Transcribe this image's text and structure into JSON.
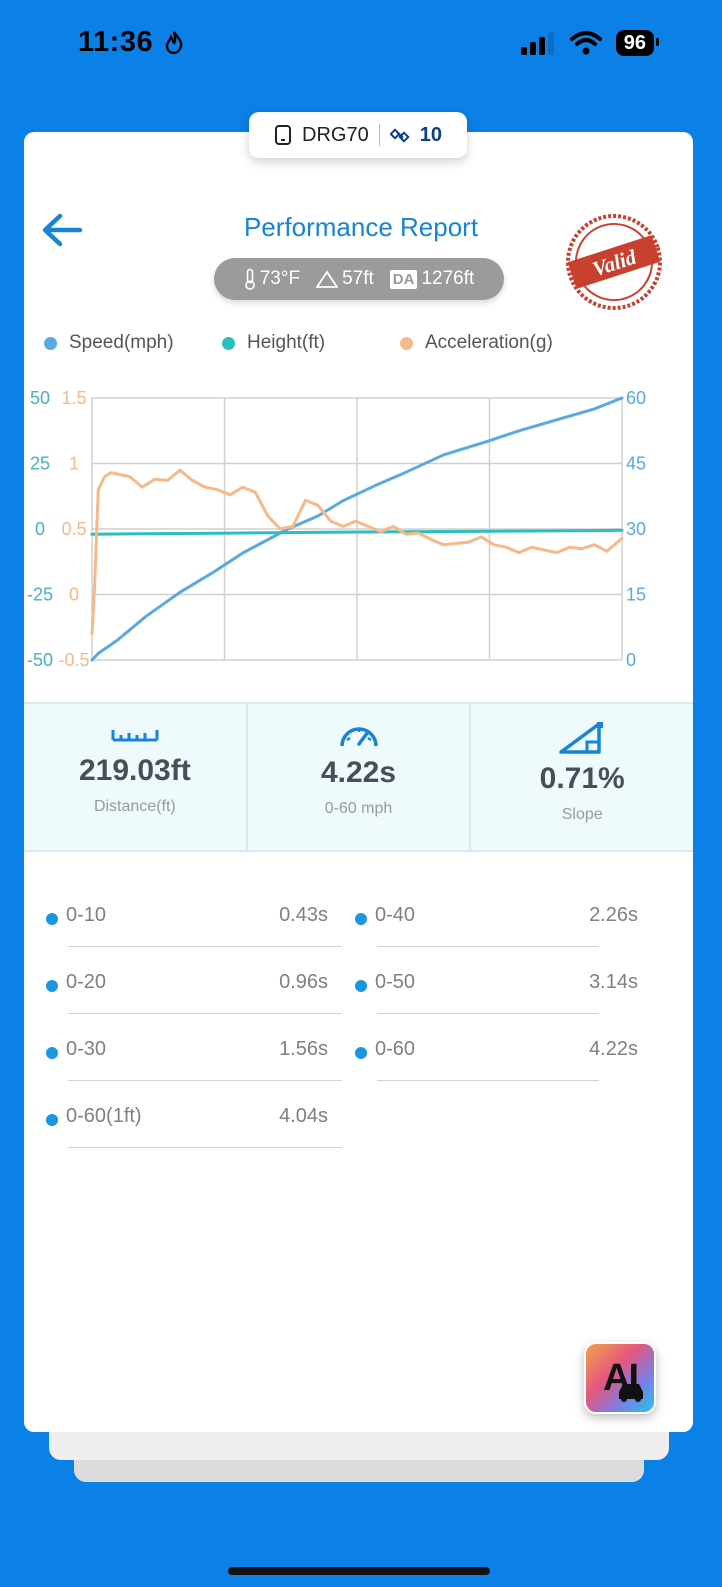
{
  "status_bar": {
    "time": "11:36",
    "battery": "96",
    "icons": [
      "flame-icon",
      "signal-icon",
      "wifi-icon",
      "battery-icon"
    ]
  },
  "device": {
    "name": "DRG70",
    "satellites": "10"
  },
  "header": {
    "title": "Performance Report",
    "stamp_text": "Valid"
  },
  "environment": {
    "temperature": "73°F",
    "altitude": "57ft",
    "da_label": "DA",
    "density_altitude": "1276ft"
  },
  "legend": [
    {
      "label": "Speed(mph)",
      "color": "#5aa9e0"
    },
    {
      "label": "Height(ft)",
      "color": "#2bbfbf"
    },
    {
      "label": "Acceleration(g)",
      "color": "#f5b98a"
    }
  ],
  "chart_data": {
    "type": "line",
    "x_range": [
      0,
      4.22
    ],
    "axes": {
      "height_ticks": [
        "50",
        "25",
        "0",
        "-25",
        "-50"
      ],
      "height_range": [
        -50,
        50
      ],
      "accel_ticks": [
        "1.5",
        "1",
        "0.5",
        "0",
        "-0.5"
      ],
      "accel_range": [
        -0.5,
        1.5
      ],
      "speed_ticks": [
        "60",
        "45",
        "30",
        "15",
        "0"
      ],
      "speed_range": [
        0,
        60
      ]
    },
    "series": [
      {
        "name": "Speed(mph)",
        "color": "#5aa9e0",
        "axis": "speed",
        "x": [
          0,
          0.05,
          0.2,
          0.43,
          0.7,
          0.96,
          1.2,
          1.56,
          1.8,
          2.0,
          2.26,
          2.5,
          2.8,
          3.14,
          3.4,
          3.7,
          4.0,
          4.22
        ],
        "values": [
          0,
          1.5,
          4.5,
          10,
          15.5,
          20,
          24.5,
          30,
          33,
          36.5,
          40,
          43,
          47,
          50,
          52.5,
          55,
          57.5,
          60
        ]
      },
      {
        "name": "Height(ft)",
        "color": "#2bbfbf",
        "axis": "height",
        "x": [
          0,
          1,
          2,
          3,
          4,
          4.22
        ],
        "values": [
          -2,
          -1.6,
          -1.2,
          -0.9,
          -0.6,
          -0.5
        ]
      },
      {
        "name": "Acceleration(g)",
        "color": "#f5b98a",
        "axis": "accel",
        "x": [
          0,
          0.02,
          0.05,
          0.1,
          0.15,
          0.2,
          0.3,
          0.4,
          0.5,
          0.6,
          0.7,
          0.8,
          0.9,
          1.0,
          1.1,
          1.2,
          1.3,
          1.4,
          1.5,
          1.6,
          1.7,
          1.8,
          1.9,
          2.0,
          2.1,
          2.2,
          2.3,
          2.4,
          2.5,
          2.6,
          2.7,
          2.8,
          2.9,
          3.0,
          3.1,
          3.2,
          3.3,
          3.4,
          3.5,
          3.6,
          3.7,
          3.8,
          3.9,
          4.0,
          4.1,
          4.22
        ],
        "values": [
          -0.3,
          0.05,
          0.8,
          0.9,
          0.93,
          0.92,
          0.9,
          0.82,
          0.88,
          0.87,
          0.95,
          0.87,
          0.82,
          0.8,
          0.76,
          0.82,
          0.78,
          0.6,
          0.5,
          0.52,
          0.72,
          0.68,
          0.56,
          0.52,
          0.56,
          0.52,
          0.48,
          0.52,
          0.46,
          0.47,
          0.42,
          0.38,
          0.39,
          0.4,
          0.44,
          0.38,
          0.36,
          0.32,
          0.36,
          0.34,
          0.32,
          0.36,
          0.35,
          0.38,
          0.33,
          0.43
        ]
      }
    ]
  },
  "metrics": [
    {
      "value": "219.03ft",
      "label": "Distance(ft)",
      "icon": "ruler-icon"
    },
    {
      "value": "4.22s",
      "label": "0-60 mph",
      "icon": "speedometer-icon"
    },
    {
      "value": "0.71%",
      "label": "Slope",
      "icon": "slope-icon"
    }
  ],
  "splits": [
    {
      "label": "0-10",
      "time": "0.43s"
    },
    {
      "label": "0-40",
      "time": "2.26s"
    },
    {
      "label": "0-20",
      "time": "0.96s"
    },
    {
      "label": "0-50",
      "time": "3.14s"
    },
    {
      "label": "0-30",
      "time": "1.56s"
    },
    {
      "label": "0-60",
      "time": "4.22s"
    },
    {
      "label": "0-60(1ft)",
      "time": "4.04s"
    }
  ],
  "ai_button": {
    "label": "AI"
  }
}
